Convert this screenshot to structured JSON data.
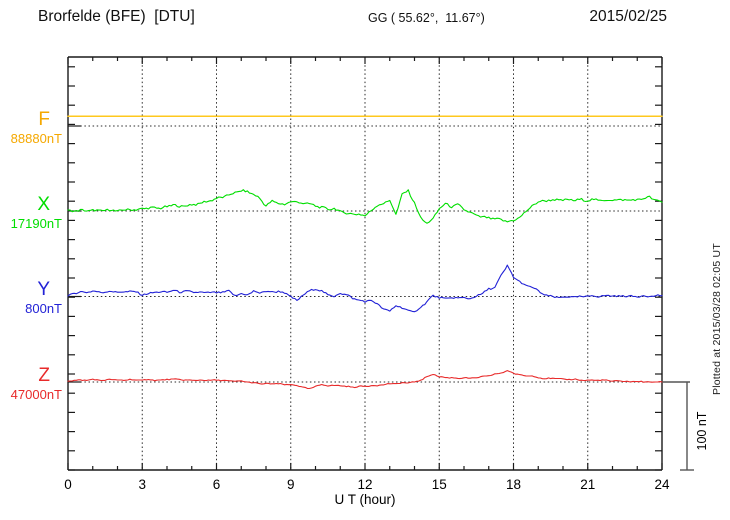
{
  "header": {
    "station_title": "Brorfelde (BFE)  [DTU]",
    "coordinates": "GG ( 55.62°,  11.67°)",
    "date": "2015/02/25"
  },
  "side_note": "Plotted at 2015/03/28 02:05 UT",
  "scale_bar": {
    "label": "100 nT",
    "value_nT": 100
  },
  "chart_data": {
    "type": "line",
    "title": "Brorfelde (BFE)  [DTU]",
    "xlabel": "U T (hour)",
    "x_range": [
      0,
      24
    ],
    "x_major_ticks": [
      0,
      3,
      6,
      9,
      12,
      15,
      18,
      21,
      24
    ],
    "x_minor_step_hours": 1,
    "grid": "dotted vertical lines every 3 hours, dotted horizontal baseline per trace",
    "legend_position": "left margin",
    "sample_step_hours": 0.25,
    "series": [
      {
        "name": "F",
        "value_label": "88880nT",
        "baseline_nT": 88880,
        "color": "#FFC81E",
        "label_color": "#F5A800",
        "constant_nT": 11,
        "noise_nT": 0
      },
      {
        "name": "X",
        "value_label": "17190nT",
        "baseline_nT": 17190,
        "color": "#00DE00",
        "label_color": "#00DE00",
        "noise_nT": 1.6,
        "offsets_nT": [
          0,
          0,
          1,
          0,
          1,
          0,
          1,
          1,
          0,
          1,
          2,
          1,
          3,
          3,
          4,
          3,
          5,
          7,
          5,
          6,
          7,
          8,
          10,
          12,
          14,
          16,
          18,
          21,
          23,
          22,
          19,
          14,
          6,
          11,
          9,
          7,
          11,
          10,
          9,
          8,
          6,
          4,
          2,
          3,
          -1,
          -2,
          -4,
          -3,
          -6,
          1,
          6,
          9,
          12,
          -4,
          19,
          23,
          9,
          -8,
          -14,
          -9,
          3,
          8,
          5,
          7,
          2,
          -2,
          -5,
          -7,
          -8,
          -9,
          -10,
          -12,
          -11,
          -7,
          -1,
          6,
          10,
          12,
          12,
          13,
          12,
          13,
          12,
          13,
          12,
          13,
          12,
          12,
          13,
          12,
          13,
          12,
          13,
          14,
          16,
          12,
          10
        ]
      },
      {
        "name": "Y",
        "value_label": "800nT",
        "baseline_nT": 800,
        "color": "#2222D6",
        "label_color": "#2222D6",
        "noise_nT": 1.3,
        "offsets_nT": [
          0,
          4,
          5,
          5,
          6,
          5,
          5,
          6,
          5,
          5,
          6,
          5,
          2,
          3,
          5,
          5,
          5,
          7,
          5,
          6,
          5,
          5,
          4,
          5,
          4,
          5,
          6,
          1,
          3,
          2,
          6,
          4,
          6,
          5,
          6,
          4,
          0,
          -5,
          2,
          6,
          9,
          6,
          2,
          0,
          4,
          2,
          -2,
          -4,
          -6,
          -4,
          -9,
          -14,
          -17,
          -10,
          -13,
          -16,
          -18,
          -12,
          -6,
          1,
          -1,
          -3,
          -1,
          -2,
          -1,
          -3,
          1,
          3,
          9,
          10,
          24,
          35,
          22,
          17,
          12,
          11,
          6,
          2,
          0,
          -1,
          -1,
          0,
          -1,
          0,
          0,
          1,
          0,
          1,
          1,
          0,
          1,
          0,
          0,
          1,
          0,
          1,
          1
        ]
      },
      {
        "name": "Z",
        "value_label": "47000nT",
        "baseline_nT": 47000,
        "color": "#E82A2A",
        "label_color": "#E82A2A",
        "noise_nT": 0.7,
        "offsets_nT": [
          1,
          2,
          2,
          2,
          3,
          2,
          2,
          3,
          2,
          2,
          3,
          2,
          2,
          3,
          2,
          2,
          3,
          3,
          3,
          2,
          2,
          2,
          2,
          2,
          2,
          2,
          1,
          1,
          1,
          0,
          -1,
          -2,
          -2,
          -2,
          -2,
          -3,
          -3,
          -4,
          -6,
          -8,
          -5,
          -3,
          -4,
          -4,
          -4,
          -5,
          -6,
          -5,
          -5,
          -4,
          -4,
          -3,
          -2,
          -2,
          -1,
          -1,
          0,
          2,
          6,
          9,
          6,
          5,
          5,
          4,
          5,
          4,
          5,
          6,
          7,
          9,
          10,
          13,
          10,
          8,
          7,
          7,
          5,
          4,
          4,
          4,
          3,
          3,
          3,
          2,
          2,
          2,
          2,
          2,
          1,
          1,
          1,
          0,
          1,
          0,
          0,
          0,
          0
        ]
      }
    ]
  }
}
